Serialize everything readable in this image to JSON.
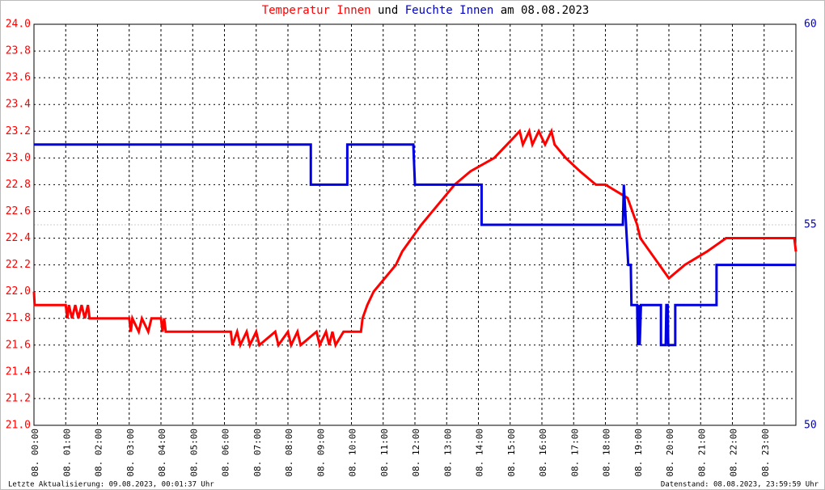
{
  "chart_data": {
    "type": "line",
    "title_parts": [
      {
        "text": "Temperatur Innen",
        "color": "#ff0000"
      },
      {
        "text": "und",
        "color": "#000000"
      },
      {
        "text": "Feuchte Innen",
        "color": "#0000c0"
      },
      {
        "text": "am 08.08.2023",
        "color": "#000000"
      }
    ],
    "xlim": [
      0,
      24
    ],
    "xticks": [
      {
        "value": 0,
        "label": "08. 00:00"
      },
      {
        "value": 1,
        "label": "08. 01:00"
      },
      {
        "value": 2,
        "label": "08. 02:00"
      },
      {
        "value": 3,
        "label": "08. 03:00"
      },
      {
        "value": 4,
        "label": "08. 04:00"
      },
      {
        "value": 5,
        "label": "08. 05:00"
      },
      {
        "value": 6,
        "label": "08. 06:00"
      },
      {
        "value": 7,
        "label": "08. 07:00"
      },
      {
        "value": 8,
        "label": "08. 08:00"
      },
      {
        "value": 9,
        "label": "08. 09:00"
      },
      {
        "value": 10,
        "label": "08. 10:00"
      },
      {
        "value": 11,
        "label": "08. 11:00"
      },
      {
        "value": 12,
        "label": "08. 12:00"
      },
      {
        "value": 13,
        "label": "08. 13:00"
      },
      {
        "value": 14,
        "label": "08. 14:00"
      },
      {
        "value": 15,
        "label": "08. 15:00"
      },
      {
        "value": 16,
        "label": "08. 16:00"
      },
      {
        "value": 17,
        "label": "08. 17:00"
      },
      {
        "value": 18,
        "label": "08. 18:00"
      },
      {
        "value": 19,
        "label": "08. 19:00"
      },
      {
        "value": 20,
        "label": "08. 20:00"
      },
      {
        "value": 21,
        "label": "08. 21:00"
      },
      {
        "value": 22,
        "label": "08. 22:00"
      },
      {
        "value": 23,
        "label": "08. 23:00"
      }
    ],
    "ylim": [
      21.0,
      24.0
    ],
    "yticks": [
      {
        "value": 21.0,
        "label": "21.0"
      },
      {
        "value": 21.2,
        "label": "21.2"
      },
      {
        "value": 21.4,
        "label": "21.4"
      },
      {
        "value": 21.6,
        "label": "21.6"
      },
      {
        "value": 21.8,
        "label": "21.8"
      },
      {
        "value": 22.0,
        "label": "22.0"
      },
      {
        "value": 22.2,
        "label": "22.2"
      },
      {
        "value": 22.4,
        "label": "22.4"
      },
      {
        "value": 22.6,
        "label": "22.6"
      },
      {
        "value": 22.8,
        "label": "22.8"
      },
      {
        "value": 23.0,
        "label": "23.0"
      },
      {
        "value": 23.2,
        "label": "23.2"
      },
      {
        "value": 23.4,
        "label": "23.4"
      },
      {
        "value": 23.6,
        "label": "23.6"
      },
      {
        "value": 23.8,
        "label": "23.8"
      },
      {
        "value": 24.0,
        "label": "24.0"
      }
    ],
    "y2lim": [
      50,
      60
    ],
    "y2ticks": [
      50,
      55,
      60
    ],
    "y2tick_color": "#0000c0",
    "ytick_color": "#ff0000",
    "grid": true,
    "series": [
      {
        "name": "Temperatur Innen",
        "color": "#ff0000",
        "x": [
          0,
          0.02,
          1.0,
          1.05,
          1.1,
          1.2,
          1.3,
          1.4,
          1.5,
          1.6,
          1.7,
          1.75,
          3.0,
          3.05,
          3.1,
          3.3,
          3.4,
          3.6,
          3.7,
          4.0,
          4.05,
          4.1,
          4.15,
          6.2,
          6.25,
          6.4,
          6.5,
          6.7,
          6.8,
          7.0,
          7.1,
          7.6,
          7.7,
          8.0,
          8.1,
          8.3,
          8.4,
          8.9,
          9.0,
          9.2,
          9.3,
          9.4,
          9.5,
          9.75,
          10.3,
          10.35,
          10.5,
          10.7,
          11.05,
          11.4,
          11.6,
          11.9,
          12.2,
          12.55,
          12.9,
          13.25,
          13.75,
          14.5,
          14.9,
          15.3,
          15.4,
          15.6,
          15.7,
          15.9,
          16.1,
          16.3,
          16.4,
          16.75,
          17.2,
          17.7,
          18.0,
          18.7,
          18.85,
          19.0,
          19.1,
          19.4,
          19.7,
          20.0,
          20.5,
          21.2,
          21.8,
          23.95,
          24.0
        ],
        "values": [
          22.0,
          21.9,
          21.9,
          21.8,
          21.9,
          21.8,
          21.9,
          21.8,
          21.9,
          21.8,
          21.9,
          21.8,
          21.8,
          21.7,
          21.8,
          21.7,
          21.8,
          21.7,
          21.8,
          21.8,
          21.7,
          21.8,
          21.7,
          21.7,
          21.6,
          21.7,
          21.6,
          21.7,
          21.6,
          21.7,
          21.6,
          21.7,
          21.6,
          21.7,
          21.6,
          21.7,
          21.6,
          21.7,
          21.6,
          21.7,
          21.6,
          21.7,
          21.6,
          21.7,
          21.7,
          21.8,
          21.9,
          22.0,
          22.1,
          22.2,
          22.3,
          22.4,
          22.5,
          22.6,
          22.7,
          22.8,
          22.9,
          23.0,
          23.1,
          23.2,
          23.1,
          23.2,
          23.1,
          23.2,
          23.1,
          23.2,
          23.1,
          23.0,
          22.9,
          22.8,
          22.8,
          22.7,
          22.6,
          22.5,
          22.4,
          22.3,
          22.2,
          22.1,
          22.2,
          22.3,
          22.4,
          22.4,
          22.3
        ]
      },
      {
        "name": "Feuchte Innen",
        "color": "#0000e0",
        "axis": "y2",
        "x": [
          0,
          8.72,
          8.72,
          9.87,
          9.87,
          11.95,
          12.0,
          14.1,
          14.1,
          18.55,
          18.58,
          18.65,
          18.72,
          18.8,
          18.82,
          19.0,
          19.02,
          19.05,
          19.08,
          19.12,
          19.75,
          19.75,
          19.9,
          19.92,
          19.96,
          19.98,
          20.2,
          20.2,
          21.5,
          21.5,
          24.0
        ],
        "values": [
          57,
          57,
          56,
          56,
          57,
          57,
          56,
          56,
          55,
          55,
          56,
          55,
          54,
          54,
          53,
          53,
          52,
          53,
          52,
          53,
          53,
          52,
          52,
          53,
          53,
          52,
          52,
          53,
          53,
          54,
          54
        ]
      }
    ],
    "footer_left": "Letzte Aktualisierung: 09.08.2023, 00:01:37 Uhr",
    "footer_right": "Datenstand: 08.08.2023, 23:59:59 Uhr"
  }
}
